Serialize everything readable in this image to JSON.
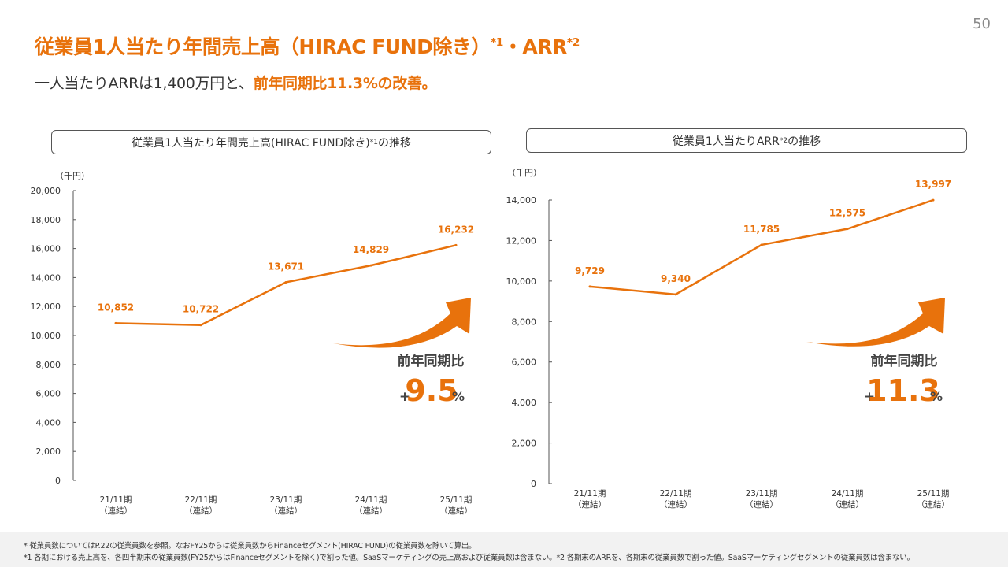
{
  "page_number": "50",
  "title": {
    "main": "従業員1人当たり年間売上高（HIRAC FUND除き）",
    "sup1": "*1",
    "sep": "・ARR",
    "sup2": "*2"
  },
  "subtitle": {
    "pre": "一人当たりARRは1,400万円と、",
    "highlight": "前年同期比11.3%の改善。"
  },
  "footnotes": {
    "line1": "*  従業員数についてはP.22の従業員数を参照。なおFY25からは従業員数からFinanceセグメント(HIRAC FUND)の従業員数を除いて算出。",
    "line2": "*1 各期における売上高を、各四半期末の従業員数(FY25からはFinanceセグメントを除く)で割った値。SaaSマーケティングの売上高および従業員数は含まない。*2 各期末のARRを、各期末の従業員数で割った値。SaaSマーケティングセグメントの従業員数は含まない。"
  },
  "colors": {
    "accent": "#e8720c",
    "axis": "#555555",
    "text": "#333333"
  },
  "chart_data": [
    {
      "type": "line",
      "header": "従業員1人当たり年間売上高(HIRAC FUND除き)",
      "header_sup": "*1",
      "header_suffix": "の推移",
      "unit": "（千円）",
      "categories": [
        "21/11期",
        "22/11期",
        "23/11期",
        "24/11期",
        "25/11期"
      ],
      "category_sub": "（連結）",
      "values": [
        10852,
        10722,
        13671,
        14829,
        16232
      ],
      "value_labels": [
        "10,852",
        "10,722",
        "13,671",
        "14,829",
        "16,232"
      ],
      "ylim": [
        0,
        20000
      ],
      "yticks": [
        "0",
        "2,000",
        "4,000",
        "6,000",
        "8,000",
        "10,000",
        "12,000",
        "14,000",
        "16,000",
        "18,000",
        "20,000"
      ],
      "grid": false,
      "growth": {
        "label": "前年同期比",
        "sign": "+",
        "value": "9.5",
        "unit": "%"
      }
    },
    {
      "type": "line",
      "header": "従業員1人当たりARR",
      "header_sup": "*2",
      "header_suffix": "の推移",
      "unit": "（千円）",
      "categories": [
        "21/11期",
        "22/11期",
        "23/11期",
        "24/11期",
        "25/11期"
      ],
      "category_sub": "（連結）",
      "values": [
        9729,
        9340,
        11785,
        12575,
        13997
      ],
      "value_labels": [
        "9,729",
        "9,340",
        "11,785",
        "12,575",
        "13,997"
      ],
      "ylim": [
        0,
        14000
      ],
      "yticks": [
        "0",
        "2,000",
        "4,000",
        "6,000",
        "8,000",
        "10,000",
        "12,000",
        "14,000"
      ],
      "grid": false,
      "growth": {
        "label": "前年同期比",
        "sign": "+",
        "value": "11.3",
        "unit": "%"
      }
    }
  ]
}
